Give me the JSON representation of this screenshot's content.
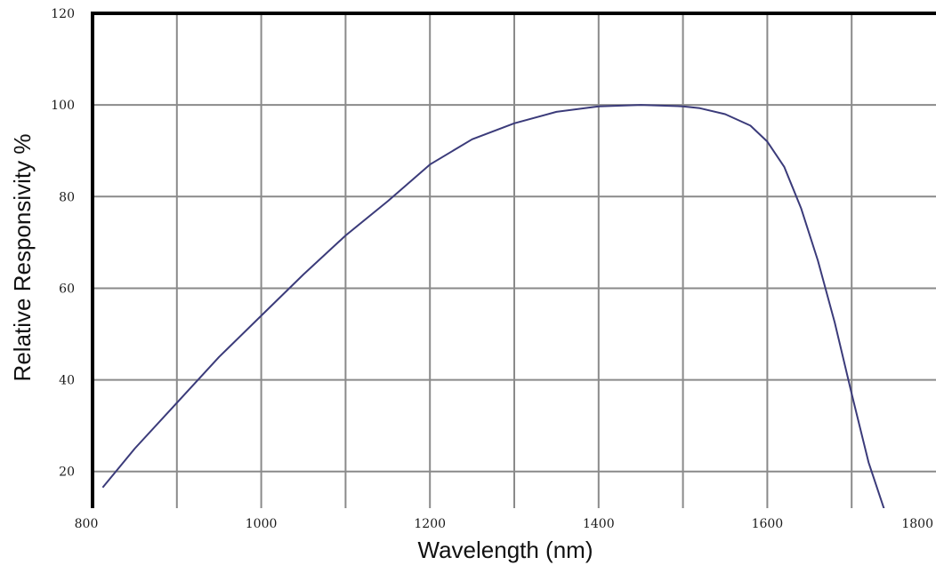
{
  "chart_data": {
    "type": "line",
    "title": "",
    "xlabel": "Wavelength (nm)",
    "ylabel": "Relative Responsivity %",
    "xlim": [
      800,
      1800
    ],
    "ylim": [
      12,
      120
    ],
    "x_ticks": [
      800,
      1000,
      1200,
      1400,
      1600,
      1800
    ],
    "x_tick_labels": [
      "800",
      "1000",
      "1200",
      "1400",
      "1600",
      "1800"
    ],
    "y_ticks": [
      20,
      40,
      60,
      80,
      100,
      120
    ],
    "y_tick_labels": [
      "20",
      "40",
      "60",
      "80",
      "100",
      "120"
    ],
    "x_grid_step": 100,
    "grid": true,
    "series": [
      {
        "color": "#3b3b7a",
        "x": [
          812,
          850,
          900,
          950,
          1000,
          1050,
          1100,
          1150,
          1200,
          1250,
          1300,
          1350,
          1400,
          1450,
          1500,
          1520,
          1550,
          1580,
          1600,
          1620,
          1640,
          1660,
          1680,
          1700,
          1720,
          1740,
          1750
        ],
        "y": [
          16.5,
          25,
          35,
          45,
          54,
          63,
          71.5,
          79,
          87,
          92.5,
          96,
          98.5,
          99.7,
          100,
          99.7,
          99.3,
          98,
          95.5,
          92,
          86.5,
          77.5,
          66,
          52.5,
          37,
          22,
          11,
          4
        ]
      }
    ],
    "colors": {
      "grid": "#8a8a8a",
      "frame": "#000000",
      "line": "#3b3b7a"
    }
  }
}
